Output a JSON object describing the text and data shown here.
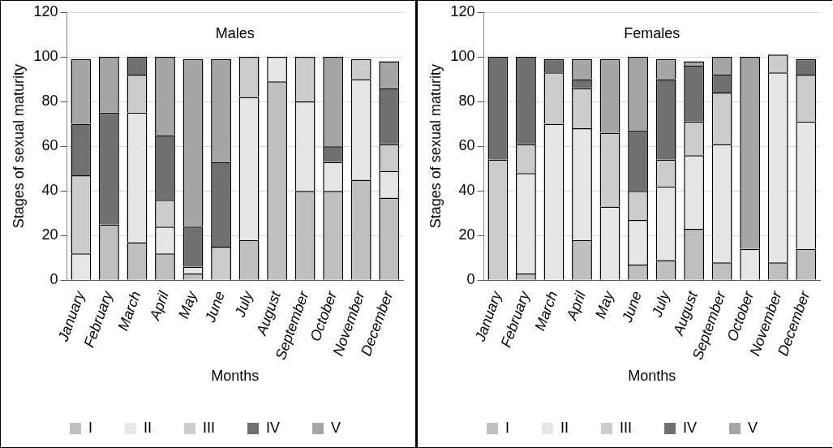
{
  "chart_data": [
    {
      "type": "bar",
      "title": "Males",
      "xlabel": "Months",
      "ylabel": "Stages of sexual maturity",
      "stacked": true,
      "grid": "y",
      "legend": "bottom",
      "ylim": [
        0,
        120
      ],
      "yticks": [
        0,
        20,
        40,
        60,
        80,
        100,
        120
      ],
      "categories": [
        "January",
        "February",
        "March",
        "April",
        "May",
        "June",
        "July",
        "August",
        "September",
        "October",
        "November",
        "December"
      ],
      "series": [
        {
          "name": "I",
          "color": "#bfbfbf",
          "values": [
            0,
            25,
            17,
            12,
            3,
            0,
            18,
            89,
            40,
            40,
            45,
            37
          ]
        },
        {
          "name": "II",
          "color": "#e6e6e6",
          "values": [
            12,
            0,
            58,
            12,
            3,
            0,
            64,
            11,
            40,
            13,
            45,
            12
          ]
        },
        {
          "name": "III",
          "color": "#cccccc",
          "values": [
            35,
            0,
            17,
            12,
            0,
            15,
            18,
            0,
            20,
            0,
            9,
            12
          ]
        },
        {
          "name": "IV",
          "color": "#707070",
          "values": [
            23,
            50,
            8,
            29,
            18,
            38,
            0,
            0,
            0,
            7,
            0,
            25
          ]
        },
        {
          "name": "V",
          "color": "#a6a6a6",
          "values": [
            29,
            25,
            0,
            35,
            75,
            46,
            0,
            0,
            0,
            40,
            0,
            12
          ]
        }
      ]
    },
    {
      "type": "bar",
      "title": "Females",
      "xlabel": "Months",
      "ylabel": "Stages of sexual maturity",
      "stacked": true,
      "grid": "y",
      "legend": "bottom",
      "ylim": [
        0,
        120
      ],
      "yticks": [
        0,
        20,
        40,
        60,
        80,
        100,
        120
      ],
      "categories": [
        "January",
        "February",
        "March",
        "April",
        "May",
        "June",
        "July",
        "August",
        "September",
        "October",
        "November",
        "December"
      ],
      "series": [
        {
          "name": "I",
          "color": "#bfbfbf",
          "values": [
            0,
            3,
            0,
            18,
            0,
            7,
            9,
            23,
            8,
            0,
            8,
            14
          ]
        },
        {
          "name": "II",
          "color": "#e6e6e6",
          "values": [
            0,
            45,
            70,
            50,
            33,
            20,
            33,
            33,
            53,
            14,
            85,
            57
          ]
        },
        {
          "name": "III",
          "color": "#cccccc",
          "values": [
            54,
            13,
            23,
            18,
            33,
            13,
            12,
            15,
            23,
            0,
            8,
            21
          ]
        },
        {
          "name": "IV",
          "color": "#707070",
          "values": [
            46,
            39,
            6,
            4,
            0,
            27,
            36,
            25,
            8,
            0,
            0,
            7
          ]
        },
        {
          "name": "V",
          "color": "#a6a6a6",
          "values": [
            0,
            0,
            0,
            9,
            33,
            33,
            9,
            2,
            8,
            86,
            0,
            0
          ]
        }
      ]
    }
  ]
}
